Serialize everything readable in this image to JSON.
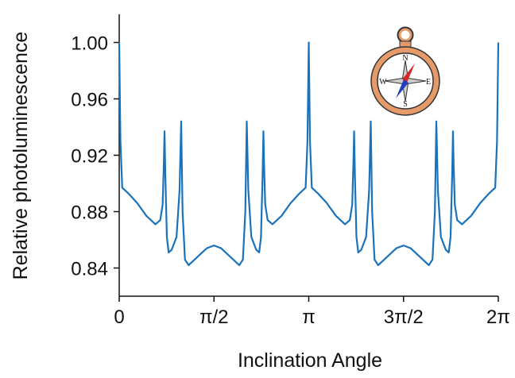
{
  "chart_data": {
    "type": "line",
    "xlabel": "Inclination Angle",
    "ylabel": "Relative photoluminescence",
    "annotations": [
      "N",
      "E",
      "S",
      "W"
    ],
    "xlim": [
      0,
      6.2832
    ],
    "ylim": [
      0.82,
      1.02
    ],
    "xticks": [
      0,
      {
        "value": 1.5708,
        "label": "π/2"
      },
      {
        "value": 3.1416,
        "label": "π"
      },
      {
        "value": 4.7124,
        "label": "3π/2"
      },
      {
        "value": 6.2832,
        "label": "2π"
      }
    ],
    "yticks": [
      0.84,
      0.88,
      0.92,
      0.96,
      {
        "value": 1,
        "label": "1.00"
      }
    ],
    "x": [
      0,
      0.02,
      0.05,
      0.15,
      0.3,
      0.45,
      0.6,
      0.68,
      0.72,
      0.74,
      0.751,
      0.765,
      0.79,
      0.82,
      0.87,
      0.95,
      1.0,
      1.027,
      1.05,
      1.09,
      1.15,
      1.3,
      1.45,
      1.571,
      1.69,
      1.84,
      1.99,
      2.05,
      2.09,
      2.114,
      2.14,
      2.19,
      2.27,
      2.32,
      2.35,
      2.376,
      2.39,
      2.4,
      2.42,
      2.46,
      2.54,
      2.69,
      2.84,
      2.99,
      3.09,
      3.12,
      3.1416,
      3.162,
      3.192,
      3.292,
      3.442,
      3.592,
      3.742,
      3.822,
      3.862,
      3.882,
      3.893,
      3.907,
      3.932,
      3.962,
      4.012,
      4.092,
      4.142,
      4.169,
      4.192,
      4.232,
      4.292,
      4.442,
      4.592,
      4.712,
      4.832,
      4.982,
      5.132,
      5.192,
      5.232,
      5.256,
      5.282,
      5.332,
      5.412,
      5.462,
      5.492,
      5.518,
      5.532,
      5.542,
      5.562,
      5.602,
      5.682,
      5.832,
      5.982,
      6.132,
      6.232,
      6.262,
      6.2832
    ],
    "series": [
      {
        "color": "#1a72bb",
        "values": [
          1.0,
          0.93,
          0.897,
          0.893,
          0.886,
          0.877,
          0.871,
          0.874,
          0.885,
          0.915,
          0.937,
          0.905,
          0.862,
          0.851,
          0.853,
          0.862,
          0.895,
          0.944,
          0.88,
          0.846,
          0.842,
          0.848,
          0.854,
          0.856,
          0.854,
          0.848,
          0.842,
          0.846,
          0.88,
          0.944,
          0.895,
          0.862,
          0.853,
          0.851,
          0.862,
          0.905,
          0.937,
          0.915,
          0.885,
          0.874,
          0.871,
          0.877,
          0.886,
          0.893,
          0.897,
          0.93,
          1.0,
          0.93,
          0.897,
          0.893,
          0.886,
          0.877,
          0.871,
          0.874,
          0.885,
          0.915,
          0.937,
          0.905,
          0.862,
          0.851,
          0.853,
          0.862,
          0.895,
          0.944,
          0.88,
          0.846,
          0.842,
          0.848,
          0.854,
          0.856,
          0.854,
          0.848,
          0.842,
          0.846,
          0.88,
          0.944,
          0.895,
          0.862,
          0.853,
          0.851,
          0.862,
          0.905,
          0.937,
          0.915,
          0.885,
          0.874,
          0.871,
          0.877,
          0.886,
          0.893,
          0.897,
          0.93,
          1.0
        ]
      }
    ]
  }
}
